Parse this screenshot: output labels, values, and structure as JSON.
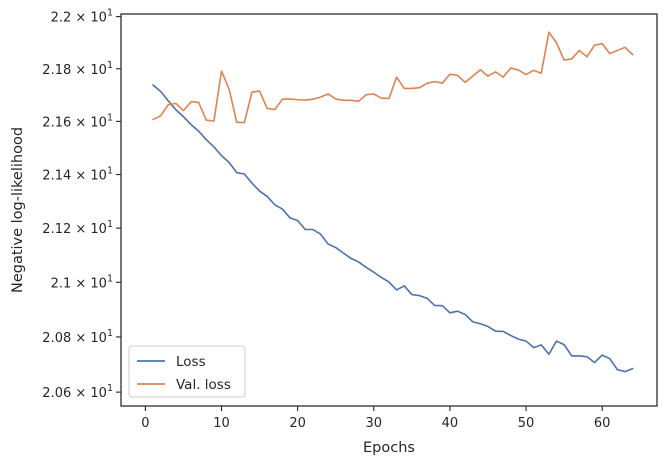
{
  "chart_data": {
    "type": "line",
    "xlabel": "Epochs",
    "ylabel": "Negative log-likelihood",
    "xlim": [
      -3.2,
      67.2
    ],
    "ylim": [
      20.55,
      22.01
    ],
    "x_ticks": [
      0,
      10,
      20,
      30,
      40,
      50,
      60
    ],
    "x_tick_labels": [
      "0",
      "10",
      "20",
      "30",
      "40",
      "50",
      "60"
    ],
    "y_ticks": [
      20.6,
      20.8,
      21.0,
      21.2,
      21.4,
      21.6,
      21.8,
      22.0
    ],
    "y_tick_labels": [
      {
        "mantissa": "2.06",
        "exp": "1"
      },
      {
        "mantissa": "2.08",
        "exp": "1"
      },
      {
        "mantissa": "2.1",
        "exp": "1"
      },
      {
        "mantissa": "2.12",
        "exp": "1"
      },
      {
        "mantissa": "2.14",
        "exp": "1"
      },
      {
        "mantissa": "2.16",
        "exp": "1"
      },
      {
        "mantissa": "2.18",
        "exp": "1"
      },
      {
        "mantissa": "2.2",
        "exp": "1"
      }
    ],
    "y_scale": "log",
    "grid": false,
    "legend_position": "lower-left",
    "x": [
      1,
      2,
      3,
      4,
      5,
      6,
      7,
      8,
      9,
      10,
      11,
      12,
      13,
      14,
      15,
      16,
      17,
      18,
      19,
      20,
      21,
      22,
      23,
      24,
      25,
      26,
      27,
      28,
      29,
      30,
      31,
      32,
      33,
      34,
      35,
      36,
      37,
      38,
      39,
      40,
      41,
      42,
      43,
      44,
      45,
      46,
      47,
      48,
      49,
      50,
      51,
      52,
      53,
      54,
      55,
      56,
      57,
      58,
      59,
      60,
      61,
      62,
      63,
      64
    ],
    "series": [
      {
        "name": "Loss",
        "color": "#4c72b0",
        "values": [
          21.738,
          21.714,
          21.678,
          21.644,
          21.618,
          21.588,
          21.563,
          21.531,
          21.504,
          21.471,
          21.445,
          21.407,
          21.402,
          21.368,
          21.338,
          21.318,
          21.287,
          21.271,
          21.238,
          21.228,
          21.195,
          21.195,
          21.178,
          21.141,
          21.128,
          21.108,
          21.088,
          21.075,
          21.055,
          21.037,
          21.018,
          21.001,
          20.972,
          20.987,
          20.955,
          20.951,
          20.941,
          20.915,
          20.914,
          20.888,
          20.894,
          20.882,
          20.855,
          20.848,
          20.838,
          20.821,
          20.82,
          20.805,
          20.792,
          20.785,
          20.761,
          20.771,
          20.737,
          20.785,
          20.772,
          20.731,
          20.731,
          20.728,
          20.707,
          20.734,
          20.721,
          20.681,
          20.674,
          20.685
        ]
      },
      {
        "name": "Val. loss",
        "color": "#dd8452",
        "values": [
          21.607,
          21.621,
          21.663,
          21.668,
          21.641,
          21.674,
          21.672,
          21.605,
          21.601,
          21.791,
          21.722,
          21.597,
          21.595,
          21.711,
          21.715,
          21.649,
          21.645,
          21.684,
          21.685,
          21.682,
          21.681,
          21.684,
          21.692,
          21.704,
          21.685,
          21.68,
          21.68,
          21.676,
          21.701,
          21.704,
          21.688,
          21.687,
          21.768,
          21.725,
          21.725,
          21.728,
          21.745,
          21.751,
          21.745,
          21.779,
          21.775,
          21.748,
          21.772,
          21.796,
          21.772,
          21.788,
          21.768,
          21.803,
          21.795,
          21.778,
          21.794,
          21.783,
          21.94,
          21.899,
          21.833,
          21.838,
          21.87,
          21.846,
          21.89,
          21.896,
          21.858,
          21.87,
          21.882,
          21.854
        ]
      }
    ]
  }
}
